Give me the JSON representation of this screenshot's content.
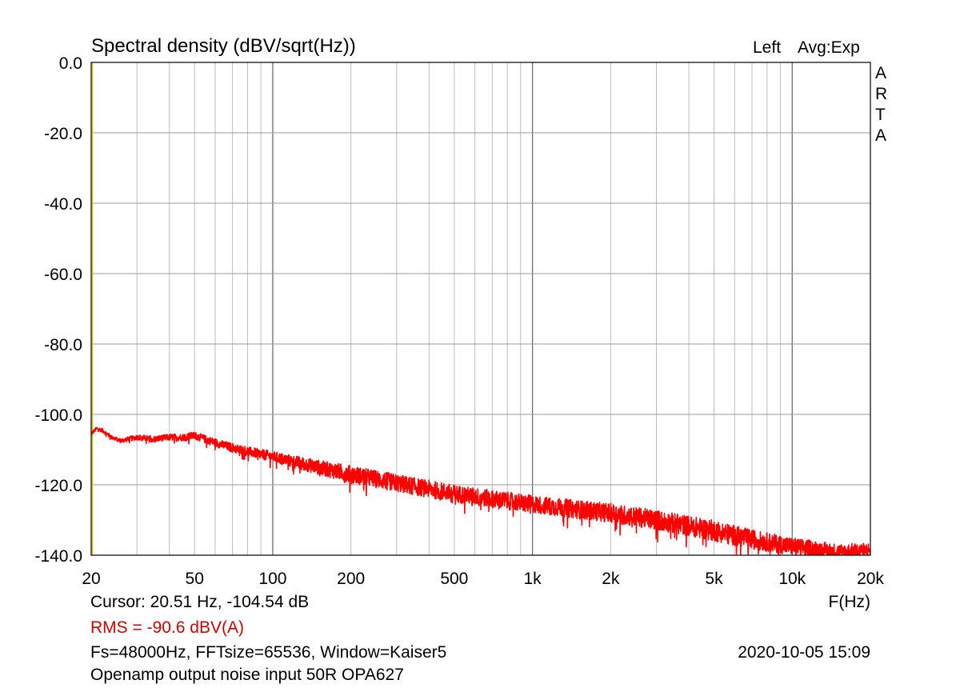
{
  "chart_data": {
    "type": "line",
    "title": "Spectral density (dBV/sqrt(Hz))",
    "channel": "Left",
    "averaging": "Avg:Exp",
    "brand": [
      "A",
      "R",
      "T",
      "A"
    ],
    "xlabel": "F(Hz)",
    "ylabel": "",
    "x_scale": "log",
    "xlim": [
      20,
      20000
    ],
    "ylim": [
      -140,
      0
    ],
    "grid": true,
    "x_ticks": [
      {
        "v": 20,
        "label": "20"
      },
      {
        "v": 50,
        "label": "50"
      },
      {
        "v": 100,
        "label": "100"
      },
      {
        "v": 200,
        "label": "200"
      },
      {
        "v": 500,
        "label": "500"
      },
      {
        "v": 1000,
        "label": "1k"
      },
      {
        "v": 2000,
        "label": "2k"
      },
      {
        "v": 5000,
        "label": "5k"
      },
      {
        "v": 10000,
        "label": "10k"
      },
      {
        "v": 20000,
        "label": "20k"
      }
    ],
    "y_ticks": [
      {
        "v": 0,
        "label": "0.0"
      },
      {
        "v": -20,
        "label": "-20.0"
      },
      {
        "v": -40,
        "label": "-40.0"
      },
      {
        "v": -60,
        "label": "-60.0"
      },
      {
        "v": -80,
        "label": "-80.0"
      },
      {
        "v": -100,
        "label": "-100.0"
      },
      {
        "v": -120,
        "label": "-120.0"
      },
      {
        "v": -140,
        "label": "-140.0"
      }
    ],
    "cursor_freq_hz": 20.51,
    "series": [
      {
        "color": "#ff0000",
        "trend": [
          [
            20,
            -105.5
          ],
          [
            21,
            -104.0
          ],
          [
            22,
            -104.5
          ],
          [
            24,
            -106.5
          ],
          [
            26,
            -107.5
          ],
          [
            30,
            -106.5
          ],
          [
            35,
            -107.0
          ],
          [
            40,
            -106.5
          ],
          [
            45,
            -106.5
          ],
          [
            50,
            -106.0
          ],
          [
            60,
            -108.0
          ],
          [
            70,
            -109.5
          ],
          [
            80,
            -110.5
          ],
          [
            100,
            -112.0
          ],
          [
            130,
            -114.0
          ],
          [
            160,
            -115.5
          ],
          [
            200,
            -117.0
          ],
          [
            300,
            -119.5
          ],
          [
            500,
            -122.5
          ],
          [
            700,
            -124.0
          ],
          [
            1000,
            -125.5
          ],
          [
            1500,
            -127.0
          ],
          [
            2000,
            -128.0
          ],
          [
            3000,
            -130.0
          ],
          [
            5000,
            -133.0
          ],
          [
            7000,
            -135.5
          ],
          [
            10000,
            -137.5
          ],
          [
            15000,
            -139.0
          ],
          [
            20000,
            -138.5
          ]
        ],
        "noise_spread_db": [
          [
            20,
            0.5
          ],
          [
            100,
            1.5
          ],
          [
            200,
            2.5
          ],
          [
            1000,
            2.5
          ],
          [
            5000,
            3.0
          ],
          [
            20000,
            2.0
          ]
        ]
      }
    ]
  },
  "readouts": {
    "cursor": "Cursor: 20.51 Hz, -104.54 dB",
    "rms": "RMS =  -90.6 dBV(A)",
    "settings": "Fs=48000Hz, FFTsize=65536, Window=Kaiser5",
    "datetime": "2020-10-05  15:09",
    "description": "Openamp output noise input 50R OPA627"
  }
}
